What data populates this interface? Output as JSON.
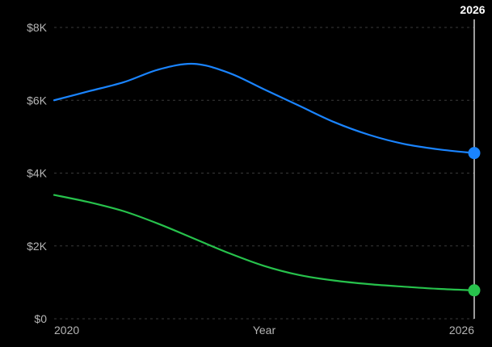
{
  "chart_data": {
    "type": "line",
    "title": "",
    "xlabel": "Year",
    "ylabel": "",
    "x_ticks": [
      "2020",
      "2026"
    ],
    "y_ticks": [
      "$0",
      "$2K",
      "$4K",
      "$6K",
      "$8K"
    ],
    "ylim": [
      0,
      8000
    ],
    "xlim": [
      2020,
      2026
    ],
    "grid": true,
    "legend": "none",
    "selected": {
      "x": 2026,
      "label": "2026"
    },
    "series": [
      {
        "color": "#1a84ff",
        "x": [
          2020,
          2020.5,
          2021,
          2021.5,
          2022,
          2022.5,
          2023,
          2023.5,
          2024,
          2024.5,
          2025,
          2025.5,
          2026
        ],
        "y": [
          6000,
          6250,
          6500,
          6850,
          7000,
          6750,
          6300,
          5850,
          5400,
          5050,
          4800,
          4650,
          4550
        ]
      },
      {
        "color": "#27c24c",
        "x": [
          2020,
          2020.5,
          2021,
          2021.5,
          2022,
          2022.5,
          2023,
          2023.5,
          2024,
          2024.5,
          2025,
          2025.5,
          2026
        ],
        "y": [
          3400,
          3200,
          2950,
          2600,
          2200,
          1800,
          1450,
          1200,
          1050,
          950,
          880,
          820,
          780
        ]
      }
    ]
  }
}
